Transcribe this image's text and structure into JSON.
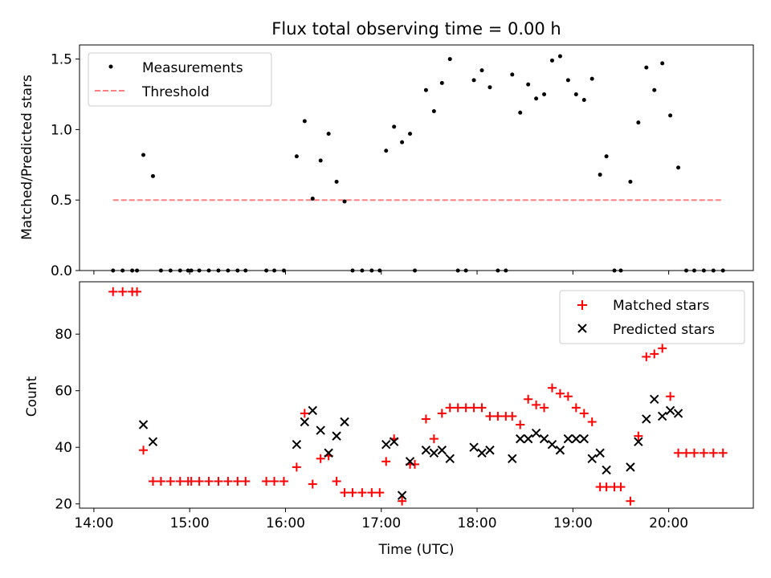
{
  "chart_data": [
    {
      "type": "scatter",
      "title": "Flux total observing time = 0.00 h",
      "xlabel": "",
      "ylabel": "Matched/Predicted stars",
      "xlim": [
        "13:51",
        "20:53"
      ],
      "ylim": [
        0,
        1.6
      ],
      "yticks": [
        "0.0",
        "0.5",
        "1.0",
        "1.5"
      ],
      "legend": {
        "placement": "top-left",
        "entries": [
          "Measurements",
          "Threshold"
        ]
      },
      "series": [
        {
          "name": "Measurements",
          "marker": "dot",
          "color": "#000000",
          "points": [
            [
              "14:12",
              0
            ],
            [
              "14:18",
              0
            ],
            [
              "14:24",
              0
            ],
            [
              "14:27",
              0
            ],
            [
              "14:31",
              0.82
            ],
            [
              "14:37",
              0.67
            ],
            [
              "14:42",
              0
            ],
            [
              "14:48",
              0
            ],
            [
              "14:54",
              0
            ],
            [
              "14:59",
              0
            ],
            [
              "15:01",
              0
            ],
            [
              "15:06",
              0
            ],
            [
              "15:12",
              0
            ],
            [
              "15:18",
              0
            ],
            [
              "15:24",
              0
            ],
            [
              "15:30",
              0
            ],
            [
              "15:35",
              0
            ],
            [
              "15:48",
              0
            ],
            [
              "15:53",
              0
            ],
            [
              "15:59",
              0
            ],
            [
              "16:07",
              0.81
            ],
            [
              "16:12",
              1.06
            ],
            [
              "16:17",
              0.51
            ],
            [
              "16:22",
              0.78
            ],
            [
              "16:27",
              0.97
            ],
            [
              "16:32",
              0.63
            ],
            [
              "16:37",
              0.49
            ],
            [
              "16:42",
              0
            ],
            [
              "16:48",
              0
            ],
            [
              "16:54",
              0
            ],
            [
              "16:59",
              0
            ],
            [
              "17:03",
              0.85
            ],
            [
              "17:08",
              1.02
            ],
            [
              "17:13",
              0.91
            ],
            [
              "17:18",
              0.97
            ],
            [
              "17:21",
              0
            ],
            [
              "17:28",
              1.28
            ],
            [
              "17:33",
              1.13
            ],
            [
              "17:38",
              1.33
            ],
            [
              "17:43",
              1.5
            ],
            [
              "17:48",
              0
            ],
            [
              "17:53",
              0
            ],
            [
              "17:58",
              1.35
            ],
            [
              "18:03",
              1.42
            ],
            [
              "18:08",
              1.3
            ],
            [
              "18:13",
              0
            ],
            [
              "18:18",
              0
            ],
            [
              "18:22",
              1.39
            ],
            [
              "18:27",
              1.12
            ],
            [
              "18:32",
              1.32
            ],
            [
              "18:37",
              1.22
            ],
            [
              "18:42",
              1.25
            ],
            [
              "18:47",
              1.49
            ],
            [
              "18:52",
              1.52
            ],
            [
              "18:57",
              1.35
            ],
            [
              "19:02",
              1.25
            ],
            [
              "19:07",
              1.21
            ],
            [
              "19:12",
              1.36
            ],
            [
              "19:17",
              0.68
            ],
            [
              "19:21",
              0.81
            ],
            [
              "19:26",
              0
            ],
            [
              "19:30",
              0
            ],
            [
              "19:36",
              0.63
            ],
            [
              "19:41",
              1.05
            ],
            [
              "19:46",
              1.44
            ],
            [
              "19:51",
              1.28
            ],
            [
              "19:56",
              1.47
            ],
            [
              "20:01",
              1.1
            ],
            [
              "20:06",
              0.73
            ],
            [
              "20:11",
              0
            ],
            [
              "20:16",
              0
            ],
            [
              "20:22",
              0
            ],
            [
              "20:28",
              0
            ],
            [
              "20:34",
              0
            ]
          ]
        },
        {
          "name": "Threshold",
          "style": "dashed",
          "color": "#ff8080",
          "points": [
            [
              "14:12",
              0.5
            ],
            [
              "20:34",
              0.5
            ]
          ]
        }
      ]
    },
    {
      "type": "scatter",
      "title": "",
      "xlabel": "Time (UTC)",
      "ylabel": "Count",
      "xlim": [
        "13:51",
        "20:53"
      ],
      "ylim": [
        18.5,
        98.5
      ],
      "xticks": [
        "14:00",
        "15:00",
        "16:00",
        "17:00",
        "18:00",
        "19:00",
        "20:00"
      ],
      "yticks": [
        "20",
        "40",
        "60",
        "80"
      ],
      "legend": {
        "placement": "top-right",
        "entries": [
          "Matched stars",
          "Predicted stars"
        ]
      },
      "series": [
        {
          "name": "Matched stars",
          "marker": "plus",
          "color": "#ff0000",
          "points": [
            [
              "14:12",
              95
            ],
            [
              "14:18",
              95
            ],
            [
              "14:24",
              95
            ],
            [
              "14:27",
              95
            ],
            [
              "14:31",
              39
            ],
            [
              "14:37",
              28
            ],
            [
              "14:42",
              28
            ],
            [
              "14:48",
              28
            ],
            [
              "14:54",
              28
            ],
            [
              "14:59",
              28
            ],
            [
              "15:01",
              28
            ],
            [
              "15:06",
              28
            ],
            [
              "15:12",
              28
            ],
            [
              "15:18",
              28
            ],
            [
              "15:24",
              28
            ],
            [
              "15:30",
              28
            ],
            [
              "15:35",
              28
            ],
            [
              "15:48",
              28
            ],
            [
              "15:53",
              28
            ],
            [
              "15:59",
              28
            ],
            [
              "16:07",
              33
            ],
            [
              "16:12",
              52
            ],
            [
              "16:17",
              27
            ],
            [
              "16:22",
              36
            ],
            [
              "16:27",
              37
            ],
            [
              "16:32",
              28
            ],
            [
              "16:37",
              24
            ],
            [
              "16:42",
              24
            ],
            [
              "16:48",
              24
            ],
            [
              "16:54",
              24
            ],
            [
              "16:59",
              24
            ],
            [
              "17:03",
              35
            ],
            [
              "17:08",
              43
            ],
            [
              "17:13",
              21
            ],
            [
              "17:18",
              34
            ],
            [
              "17:21",
              34
            ],
            [
              "17:28",
              50
            ],
            [
              "17:33",
              43
            ],
            [
              "17:38",
              52
            ],
            [
              "17:43",
              54
            ],
            [
              "17:48",
              54
            ],
            [
              "17:53",
              54
            ],
            [
              "17:58",
              54
            ],
            [
              "18:03",
              54
            ],
            [
              "18:08",
              51
            ],
            [
              "18:13",
              51
            ],
            [
              "18:18",
              51
            ],
            [
              "18:22",
              51
            ],
            [
              "18:27",
              48
            ],
            [
              "18:32",
              57
            ],
            [
              "18:37",
              55
            ],
            [
              "18:42",
              54
            ],
            [
              "18:47",
              61
            ],
            [
              "18:52",
              59
            ],
            [
              "18:57",
              58
            ],
            [
              "19:02",
              54
            ],
            [
              "19:07",
              52
            ],
            [
              "19:12",
              49
            ],
            [
              "19:17",
              26
            ],
            [
              "19:21",
              26
            ],
            [
              "19:26",
              26
            ],
            [
              "19:30",
              26
            ],
            [
              "19:36",
              21
            ],
            [
              "19:41",
              44
            ],
            [
              "19:46",
              72
            ],
            [
              "19:51",
              73
            ],
            [
              "19:56",
              75
            ],
            [
              "20:01",
              58
            ],
            [
              "20:06",
              38
            ],
            [
              "20:11",
              38
            ],
            [
              "20:16",
              38
            ],
            [
              "20:22",
              38
            ],
            [
              "20:28",
              38
            ],
            [
              "20:34",
              38
            ]
          ]
        },
        {
          "name": "Predicted stars",
          "marker": "x",
          "color": "#000000",
          "points": [
            [
              "14:31",
              48
            ],
            [
              "14:37",
              42
            ],
            [
              "16:07",
              41
            ],
            [
              "16:12",
              49
            ],
            [
              "16:17",
              53
            ],
            [
              "16:22",
              46
            ],
            [
              "16:27",
              38
            ],
            [
              "16:32",
              44
            ],
            [
              "16:37",
              49
            ],
            [
              "17:03",
              41
            ],
            [
              "17:08",
              42
            ],
            [
              "17:13",
              23
            ],
            [
              "17:18",
              35
            ],
            [
              "17:28",
              39
            ],
            [
              "17:33",
              38
            ],
            [
              "17:38",
              39
            ],
            [
              "17:43",
              36
            ],
            [
              "17:58",
              40
            ],
            [
              "18:03",
              38
            ],
            [
              "18:08",
              39
            ],
            [
              "18:22",
              36
            ],
            [
              "18:27",
              43
            ],
            [
              "18:32",
              43
            ],
            [
              "18:37",
              45
            ],
            [
              "18:42",
              43
            ],
            [
              "18:47",
              41
            ],
            [
              "18:52",
              39
            ],
            [
              "18:57",
              43
            ],
            [
              "19:02",
              43
            ],
            [
              "19:07",
              43
            ],
            [
              "19:12",
              36
            ],
            [
              "19:17",
              38
            ],
            [
              "19:21",
              32
            ],
            [
              "19:36",
              33
            ],
            [
              "19:41",
              42
            ],
            [
              "19:46",
              50
            ],
            [
              "19:51",
              57
            ],
            [
              "19:56",
              51
            ],
            [
              "20:01",
              53
            ],
            [
              "20:06",
              52
            ]
          ]
        }
      ]
    }
  ]
}
